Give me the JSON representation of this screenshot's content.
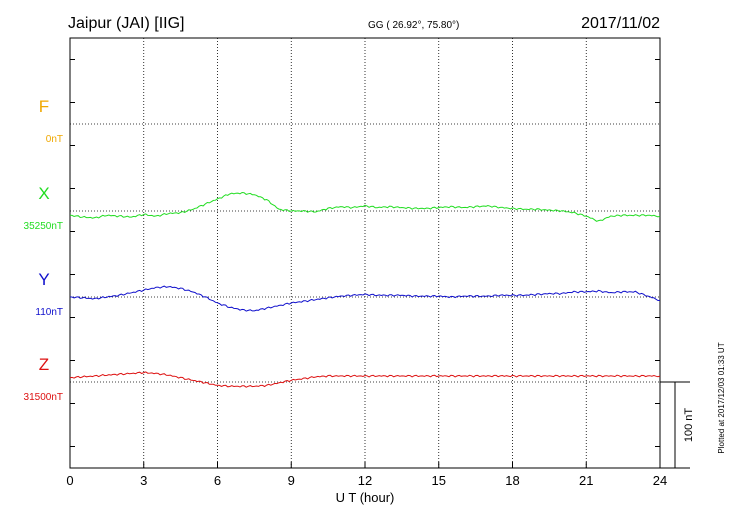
{
  "header": {
    "station": "Jaipur (JAI)  [IIG]",
    "coords": "GG ( 26.92°,  75.80°)",
    "date": "2017/11/02"
  },
  "footer": {
    "plotted": "Plotted at 2017/12/03 01:33 UT"
  },
  "scale_bar": {
    "label": "100 nT",
    "value_nT": 100
  },
  "chart_data": {
    "type": "line",
    "xlabel": "U T (hour)",
    "ylabel": "",
    "xlim": [
      0,
      24
    ],
    "x_ticks": [
      "0",
      "3",
      "6",
      "9",
      "12",
      "15",
      "18",
      "21",
      "24"
    ],
    "grid": true,
    "units": "nT",
    "series": [
      {
        "name": "F",
        "baseline_label": "0nT",
        "color": "#f0a800",
        "values": []
      },
      {
        "name": "X",
        "baseline_label": "35250nT",
        "color": "#22dd22",
        "x": [
          0,
          0.5,
          1,
          1.5,
          2,
          2.5,
          3,
          3.5,
          4,
          4.5,
          5,
          5.5,
          6,
          6.5,
          7,
          7.5,
          8,
          8.5,
          9,
          9.5,
          10,
          10.5,
          11,
          11.5,
          12,
          12.5,
          13,
          13.5,
          14,
          14.5,
          15,
          15.5,
          16,
          16.5,
          17,
          17.5,
          18,
          18.5,
          19,
          19.5,
          20,
          20.5,
          21,
          21.5,
          22,
          22.5,
          23,
          23.5,
          24
        ],
        "values": [
          -5,
          -7,
          -8,
          -5,
          -6,
          -7,
          -4,
          -6,
          -3,
          -2,
          2,
          8,
          14,
          20,
          21,
          19,
          13,
          2,
          0,
          0,
          -1,
          3,
          5,
          4,
          6,
          4,
          5,
          4,
          3,
          3,
          4,
          5,
          4,
          5,
          6,
          4,
          3,
          2,
          2,
          1,
          0,
          -2,
          -6,
          -12,
          -6,
          -5,
          -5,
          -5,
          -6
        ]
      },
      {
        "name": "Y",
        "baseline_label": "110nT",
        "color": "#1010cc",
        "x": [
          0,
          0.5,
          1,
          1.5,
          2,
          2.5,
          3,
          3.5,
          4,
          4.5,
          5,
          5.5,
          6,
          6.5,
          7,
          7.5,
          8,
          8.5,
          9,
          9.5,
          10,
          10.5,
          11,
          11.5,
          12,
          12.5,
          13,
          13.5,
          14,
          14.5,
          15,
          15.5,
          16,
          16.5,
          17,
          17.5,
          18,
          18.5,
          19,
          19.5,
          20,
          20.5,
          21,
          21.5,
          22,
          22.5,
          23,
          23.5,
          24
        ],
        "values": [
          0,
          -1,
          -2,
          0,
          2,
          5,
          8,
          11,
          12,
          10,
          6,
          0,
          -7,
          -12,
          -15,
          -16,
          -13,
          -10,
          -7,
          -5,
          -3,
          -1,
          1,
          2,
          3,
          2,
          2,
          2,
          1,
          1,
          1,
          0,
          1,
          1,
          1,
          2,
          2,
          2,
          3,
          4,
          4,
          6,
          6,
          7,
          5,
          6,
          6,
          1,
          -4
        ]
      },
      {
        "name": "Z",
        "baseline_label": "31500nT",
        "color": "#dd1111",
        "x": [
          0,
          0.5,
          1,
          1.5,
          2,
          2.5,
          3,
          3.5,
          4,
          4.5,
          5,
          5.5,
          6,
          6.5,
          7,
          7.5,
          8,
          8.5,
          9,
          9.5,
          10,
          10.5,
          11,
          11.5,
          12,
          12.5,
          13,
          13.5,
          14,
          14.5,
          15,
          15.5,
          16,
          16.5,
          17,
          17.5,
          18,
          18.5,
          19,
          19.5,
          20,
          20.5,
          21,
          21.5,
          22,
          22.5,
          23,
          23.5,
          24
        ],
        "values": [
          5,
          6,
          7,
          8,
          9,
          10,
          11,
          10,
          8,
          5,
          2,
          -1,
          -4,
          -5,
          -5,
          -5,
          -4,
          -1,
          2,
          4,
          6,
          7,
          7,
          7,
          7,
          7,
          7,
          7,
          7,
          7,
          7,
          7,
          7,
          7,
          7,
          7,
          7,
          7,
          7,
          7,
          7,
          7,
          7,
          7,
          7,
          7,
          7,
          7,
          7
        ]
      }
    ]
  }
}
